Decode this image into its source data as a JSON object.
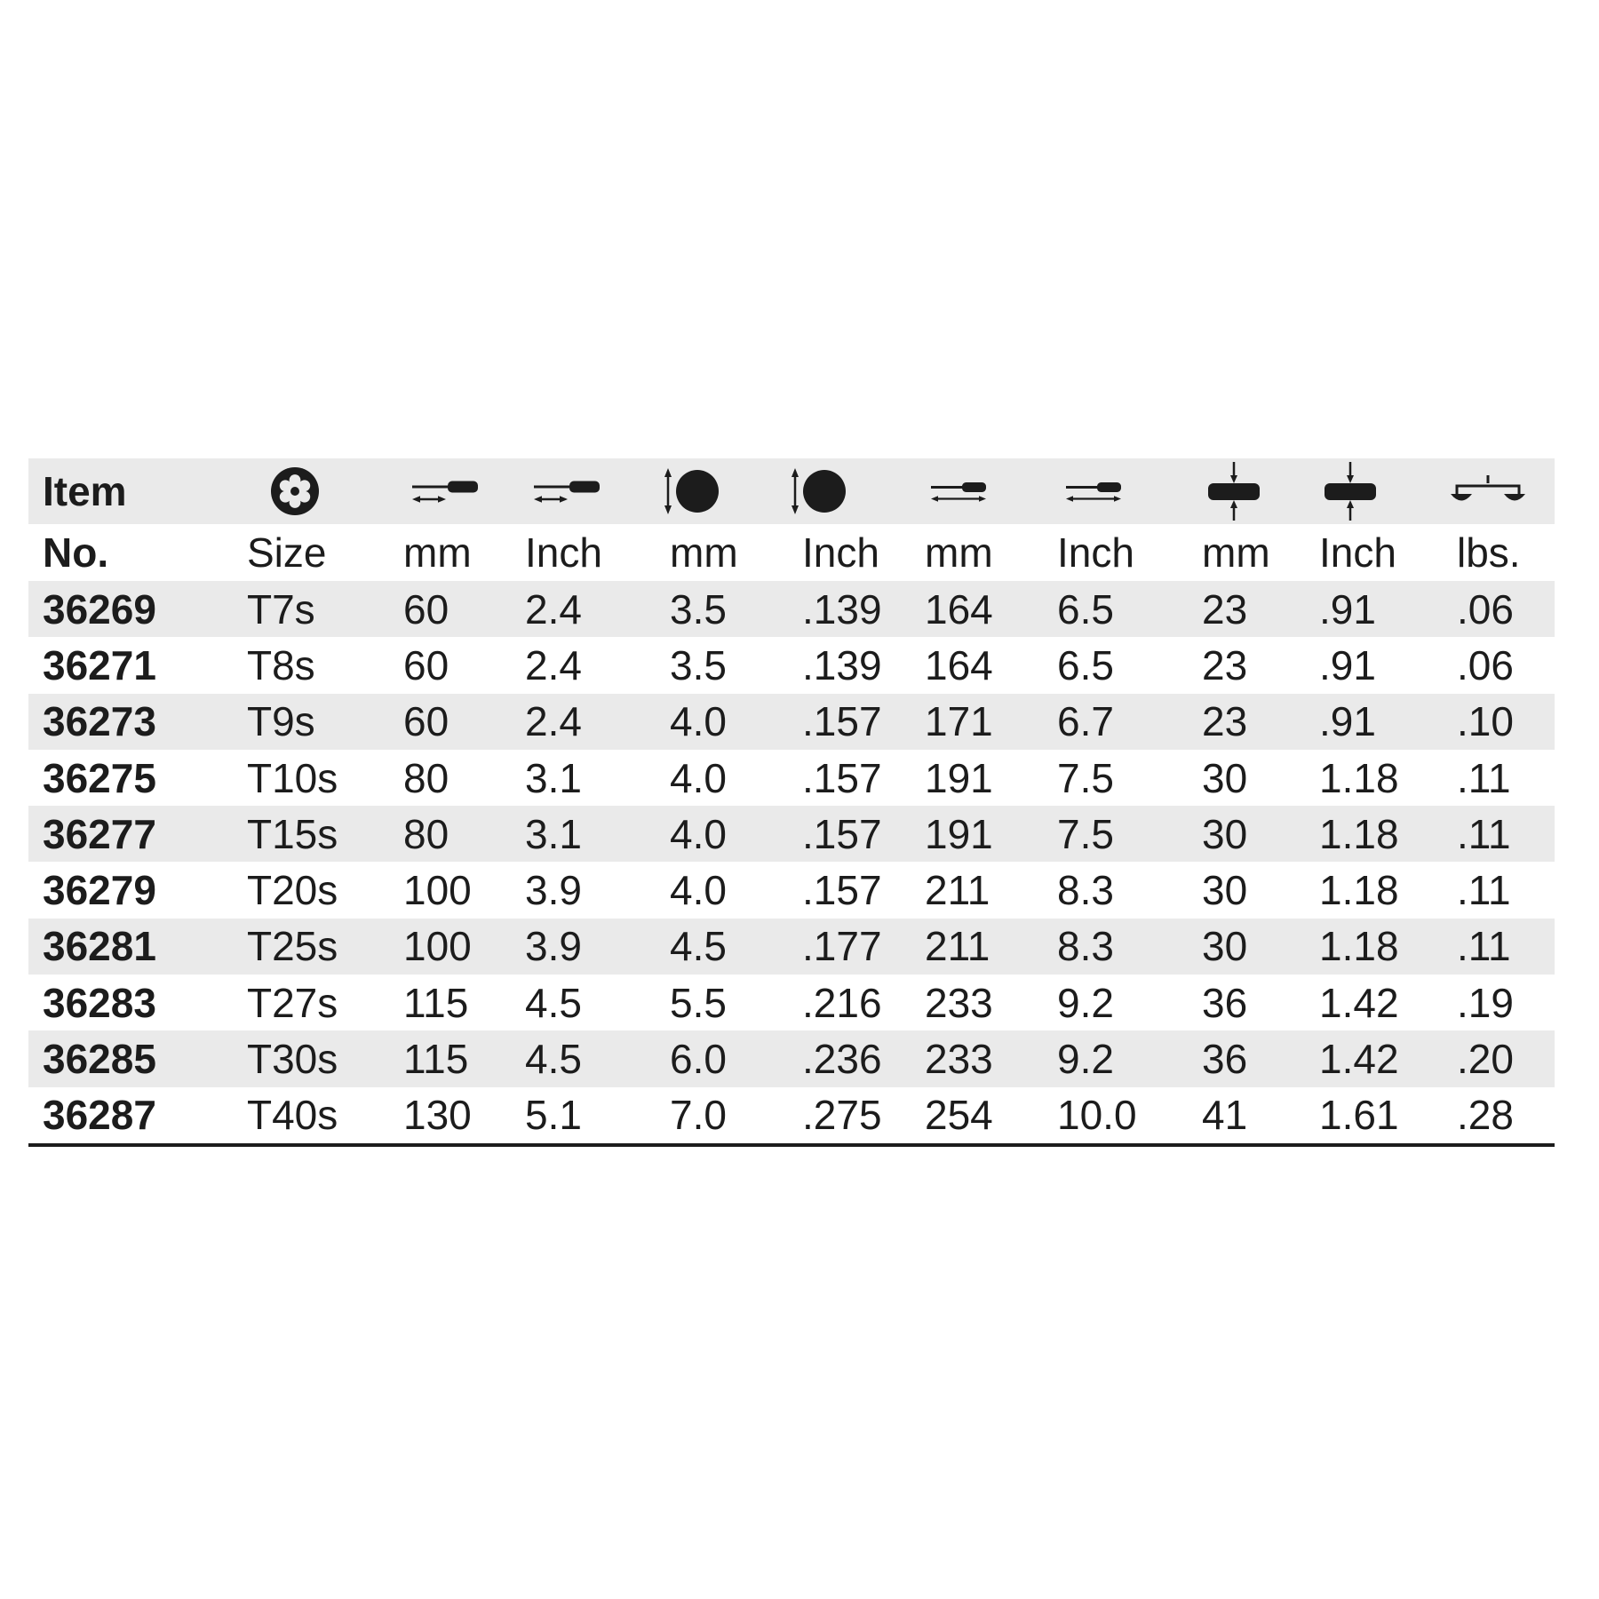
{
  "table": {
    "header": {
      "item": "Item"
    },
    "columns": [
      {
        "id": "item-no",
        "label": "No."
      },
      {
        "id": "size",
        "label": "Size",
        "icon": "torx-icon"
      },
      {
        "id": "blade-length-mm",
        "label": "mm",
        "icon": "blade-length-icon"
      },
      {
        "id": "blade-length-inch",
        "label": "Inch",
        "icon": "blade-length-icon"
      },
      {
        "id": "blade-diameter-mm",
        "label": "mm",
        "icon": "blade-diameter-icon"
      },
      {
        "id": "blade-diameter-inch",
        "label": "Inch",
        "icon": "blade-diameter-icon"
      },
      {
        "id": "overall-length-mm",
        "label": "mm",
        "icon": "overall-length-icon"
      },
      {
        "id": "overall-length-inch",
        "label": "Inch",
        "icon": "overall-length-icon"
      },
      {
        "id": "handle-diameter-mm",
        "label": "mm",
        "icon": "handle-diameter-icon"
      },
      {
        "id": "handle-diameter-inch",
        "label": "Inch",
        "icon": "handle-diameter-icon"
      },
      {
        "id": "weight-lbs",
        "label": "lbs.",
        "icon": "scale-icon"
      }
    ],
    "rows": [
      [
        "36269",
        "T7s",
        "60",
        "2.4",
        "3.5",
        ".139",
        "164",
        "6.5",
        "23",
        ".91",
        ".06"
      ],
      [
        "36271",
        "T8s",
        "60",
        "2.4",
        "3.5",
        ".139",
        "164",
        "6.5",
        "23",
        ".91",
        ".06"
      ],
      [
        "36273",
        "T9s",
        "60",
        "2.4",
        "4.0",
        ".157",
        "171",
        "6.7",
        "23",
        ".91",
        ".10"
      ],
      [
        "36275",
        "T10s",
        "80",
        "3.1",
        "4.0",
        ".157",
        "191",
        "7.5",
        "30",
        "1.18",
        ".11"
      ],
      [
        "36277",
        "T15s",
        "80",
        "3.1",
        "4.0",
        ".157",
        "191",
        "7.5",
        "30",
        "1.18",
        ".11"
      ],
      [
        "36279",
        "T20s",
        "100",
        "3.9",
        "4.0",
        ".157",
        "211",
        "8.3",
        "30",
        "1.18",
        ".11"
      ],
      [
        "36281",
        "T25s",
        "100",
        "3.9",
        "4.5",
        ".177",
        "211",
        "8.3",
        "30",
        "1.18",
        ".11"
      ],
      [
        "36283",
        "T27s",
        "115",
        "4.5",
        "5.5",
        ".216",
        "233",
        "9.2",
        "36",
        "1.42",
        ".19"
      ],
      [
        "36285",
        "T30s",
        "115",
        "4.5",
        "6.0",
        ".236",
        "233",
        "9.2",
        "36",
        "1.42",
        ".20"
      ],
      [
        "36287",
        "T40s",
        "130",
        "5.1",
        "7.0",
        ".275",
        "254",
        "10.0",
        "41",
        "1.61",
        ".28"
      ]
    ],
    "colors": {
      "header_bg": "#eaeaea",
      "alt_row_bg": "#eaeaea",
      "text": "#1c1c1c",
      "bottom_border": "#1c1c1c"
    }
  }
}
